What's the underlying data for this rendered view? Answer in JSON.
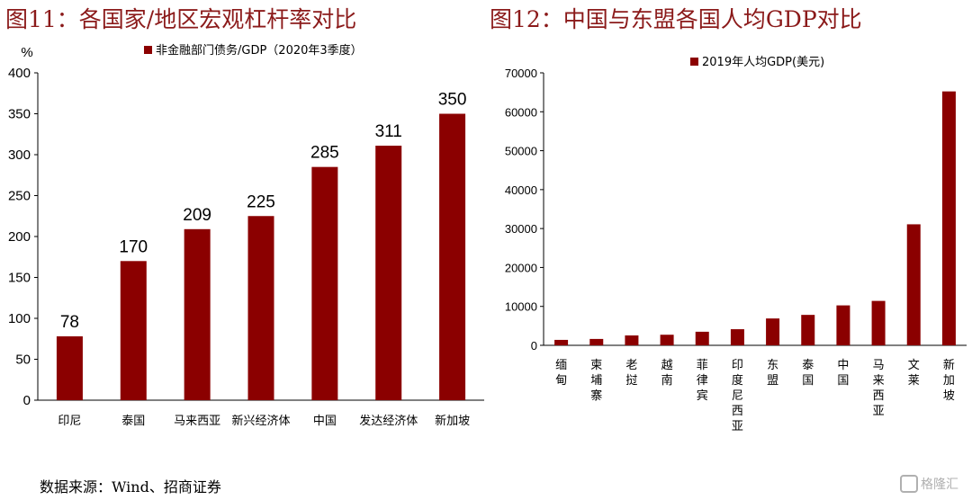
{
  "titles": {
    "left": "图11：各国家/地区宏观杠杆率对比",
    "right": "图12：中国与东盟各国人均GDP对比"
  },
  "source": "数据来源：Wind、招商证券",
  "watermark": "格隆汇",
  "colors": {
    "bar": "#8b0000",
    "axis": "#000000",
    "title": "#8b1a1a"
  },
  "chart_data": [
    {
      "type": "bar",
      "unit_label": "%",
      "legend": "非金融部门债务/GDP（2020年3季度）",
      "categories": [
        "印尼",
        "泰国",
        "马来西亚",
        "新兴经济体",
        "中国",
        "发达经济体",
        "新加坡"
      ],
      "series": [
        {
          "name": "非金融部门债务/GDP（2020年3季度）",
          "values": [
            78,
            170,
            209,
            225,
            285,
            311,
            350
          ]
        }
      ],
      "data_labels": [
        "78",
        "170",
        "209",
        "225",
        "285",
        "311",
        "350"
      ],
      "ylim": [
        0,
        400
      ],
      "yticks": [
        0,
        50,
        100,
        150,
        200,
        250,
        300,
        350,
        400
      ],
      "grid": false,
      "legend_position": "top"
    },
    {
      "type": "bar",
      "legend": "2019年人均GDP(美元)",
      "categories": [
        "缅甸",
        "柬埔寨",
        "老挝",
        "越南",
        "菲律宾",
        "印度尼西亚",
        "东盟",
        "泰国",
        "中国",
        "马来西亚",
        "文莱",
        "新加坡"
      ],
      "series": [
        {
          "name": "2019年人均GDP(美元)",
          "values": [
            1400,
            1640,
            2540,
            2720,
            3490,
            4140,
            6900,
            7820,
            10260,
            11410,
            31090,
            65230
          ]
        }
      ],
      "ylim": [
        0,
        70000
      ],
      "yticks": [
        0,
        10000,
        20000,
        30000,
        40000,
        50000,
        60000,
        70000
      ],
      "grid": false,
      "legend_position": "top"
    }
  ]
}
